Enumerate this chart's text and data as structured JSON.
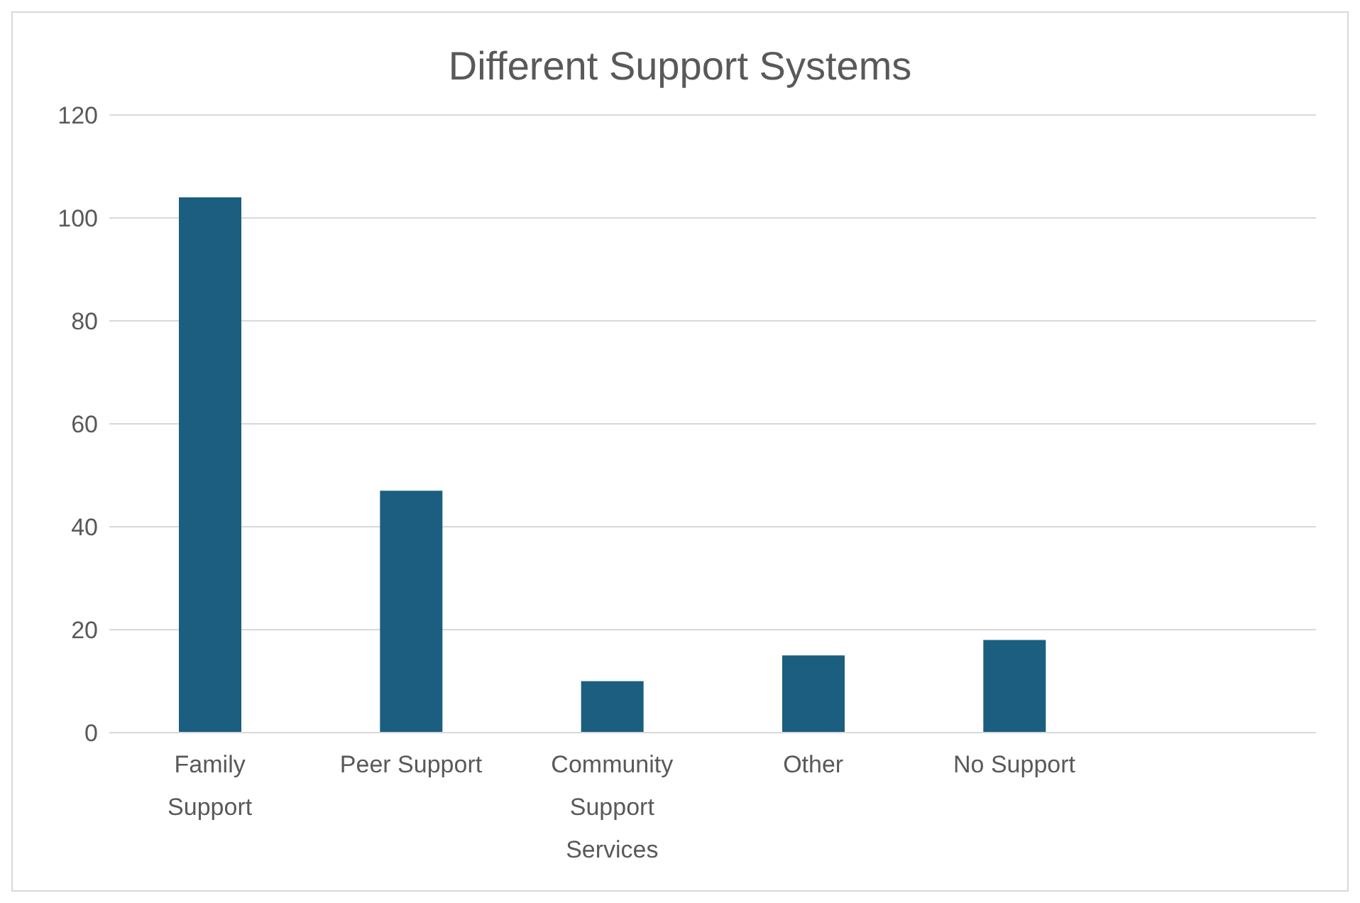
{
  "chart_data": {
    "type": "bar",
    "title": "Different Support Systems",
    "categories": [
      "Family Support",
      "Peer Support",
      "Community Support Services",
      "Other",
      "No Support",
      null
    ],
    "values": [
      104,
      47,
      10,
      15,
      18,
      null
    ],
    "color": "#1b5e80",
    "ylim": [
      0,
      120
    ],
    "yticks": [
      0,
      20,
      40,
      60,
      80,
      100,
      120
    ],
    "grid": "y",
    "legend": false
  }
}
